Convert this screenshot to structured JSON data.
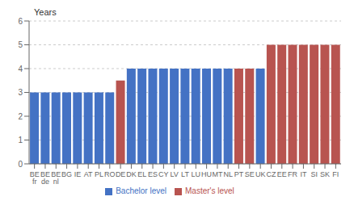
{
  "chart_data": {
    "type": "bar",
    "ylabel": "Years",
    "categories": [
      "BE\nfr",
      "BE\nde",
      "BE\nnl",
      "BG",
      "IE",
      "AT",
      "PL",
      "RO",
      "DE",
      "DK",
      "EL",
      "ES",
      "CY",
      "LV",
      "LT",
      "LU",
      "HU",
      "MT",
      "NL",
      "PT",
      "SE",
      "UK",
      "CZ",
      "EE",
      "FR",
      "IT",
      "SI",
      "SK",
      "FI"
    ],
    "series": [
      {
        "name": "Bachelor level",
        "color": "#4472C4",
        "values": [
          3,
          3,
          3,
          3,
          3,
          3,
          3,
          3,
          null,
          4,
          4,
          4,
          4,
          4,
          4,
          4,
          4,
          4,
          4,
          null,
          null,
          4,
          null,
          null,
          null,
          null,
          null,
          null,
          null
        ]
      },
      {
        "name": "Master's level",
        "color": "#B85450",
        "values": [
          null,
          null,
          null,
          null,
          null,
          null,
          null,
          null,
          3.5,
          null,
          null,
          null,
          null,
          null,
          null,
          null,
          null,
          null,
          null,
          4,
          4,
          null,
          5,
          5,
          5,
          5,
          5,
          5,
          5
        ]
      }
    ],
    "stacked": true,
    "ylim": [
      0,
      6
    ],
    "yticks": [
      0,
      1,
      2,
      3,
      4,
      5,
      6
    ],
    "grid": true,
    "legend": "bottom"
  }
}
